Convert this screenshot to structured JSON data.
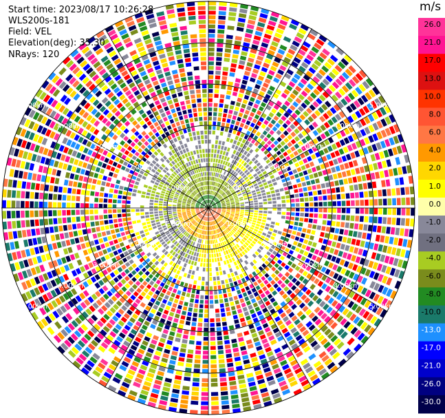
{
  "header": {
    "start_time": "Start time: 2023/08/17 10:26:28",
    "instrument": "WLS200s-181",
    "field": "Field: VEL",
    "elevation": "Elevation(deg): 35.30",
    "nrays": "NRays: 120"
  },
  "range_labels": [
    "1.00km",
    "2.00km",
    "3.00km",
    "4.00km",
    "5.00km"
  ],
  "colorbar": {
    "unit": "m/s",
    "ticks": [
      "26.0",
      "21.0",
      "17.0",
      "13.0",
      "10.0",
      "8.0",
      "6.0",
      "4.0",
      "2.0",
      "1.0",
      "0.0",
      "-1.0",
      "-2.0",
      "-4.0",
      "-6.0",
      "-8.0",
      "-10.0",
      "-13.0",
      "-17.0",
      "-21.0",
      "-26.0",
      "-30.0"
    ],
    "colors": [
      "#ff3399",
      "#ff1493",
      "#ff0000",
      "#dd1111",
      "#ff3300",
      "#ff5533",
      "#ff7744",
      "#ff9900",
      "#ffd700",
      "#ffff00",
      "#ffffaa",
      "#888899",
      "#707080",
      "#a8cc22",
      "#7a8c1c",
      "#228b22",
      "#1a7a6a",
      "#1e90ff",
      "#0000ff",
      "#0000cc",
      "#000080",
      "#00004a"
    ]
  }
}
